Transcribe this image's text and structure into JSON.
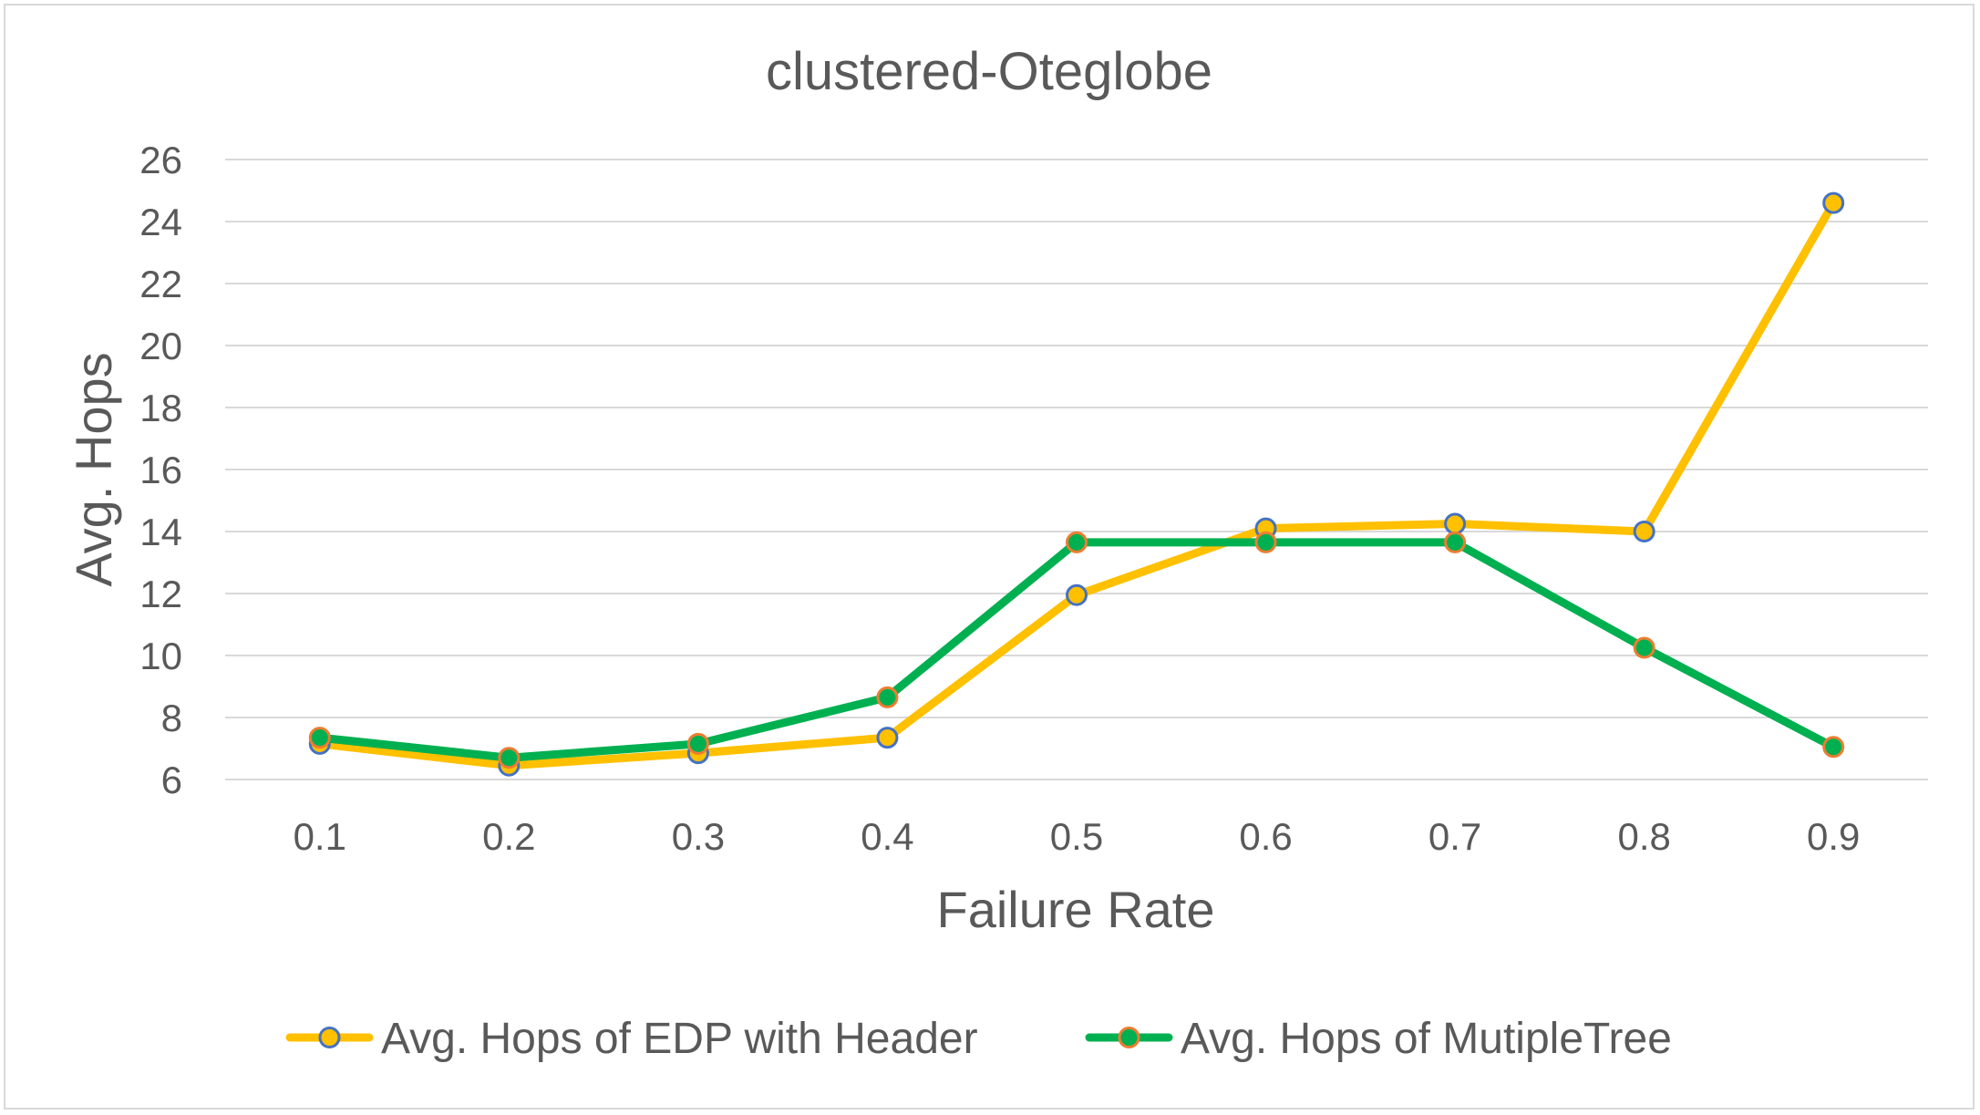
{
  "chart_data": {
    "type": "line",
    "title": "clustered-Oteglobe",
    "xlabel": "Failure Rate",
    "ylabel": "Avg. Hops",
    "categories": [
      "0.1",
      "0.2",
      "0.3",
      "0.4",
      "0.5",
      "0.6",
      "0.7",
      "0.8",
      "0.9"
    ],
    "ylim": [
      6,
      26
    ],
    "yticks": [
      "6",
      "8",
      "10",
      "12",
      "14",
      "16",
      "18",
      "20",
      "22",
      "24",
      "26"
    ],
    "grid": true,
    "legend_position": "bottom",
    "series": [
      {
        "name": "Avg. Hops of EDP with Header",
        "color": "#FFC000",
        "marker_fill": "#FFC000",
        "marker_edge": "#4472C4",
        "values": [
          7.15,
          6.45,
          6.85,
          7.35,
          11.95,
          14.1,
          14.25,
          14.0,
          24.6
        ]
      },
      {
        "name": "Avg. Hops of MutipleTree",
        "color": "#00B050",
        "marker_fill": "#00B050",
        "marker_edge": "#ED7D31",
        "values": [
          7.35,
          6.7,
          7.15,
          8.65,
          13.65,
          13.65,
          13.65,
          10.25,
          7.05
        ]
      }
    ]
  }
}
